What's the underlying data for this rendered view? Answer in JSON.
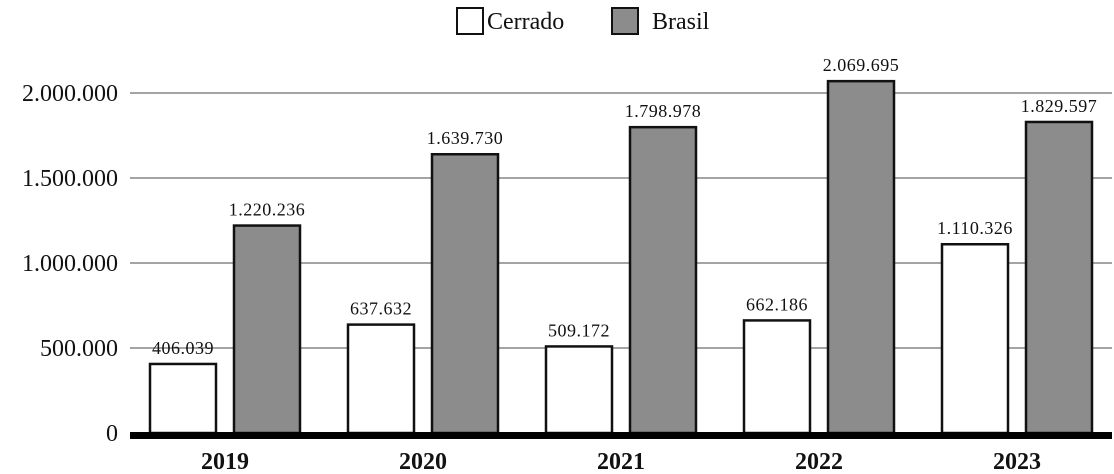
{
  "chart_data": {
    "type": "bar",
    "title": "",
    "xlabel": "",
    "ylabel": "",
    "categories": [
      "2019",
      "2020",
      "2021",
      "2022",
      "2023"
    ],
    "series": [
      {
        "name": "Cerrado",
        "color": "#ffffff",
        "values": [
          406039,
          637632,
          509172,
          662186,
          1110326
        ],
        "labels": [
          "406.039",
          "637.632",
          "509.172",
          "662.186",
          "1.110.326"
        ]
      },
      {
        "name": "Brasil",
        "color": "#8c8c8c",
        "values": [
          1220236,
          1639730,
          1798978,
          2069695,
          1829597
        ],
        "labels": [
          "1.220.236",
          "1.639.730",
          "1.798.978",
          "2.069.695",
          "1.829.597"
        ]
      }
    ],
    "ylim": [
      0,
      2000000
    ],
    "yticks": [
      0,
      500000,
      1000000,
      1500000,
      2000000
    ],
    "ytick_labels": [
      "0",
      "500.000",
      "1.000.000",
      "1.500.000",
      "2.000.000"
    ],
    "grid": true,
    "legend_position": "top-center"
  }
}
